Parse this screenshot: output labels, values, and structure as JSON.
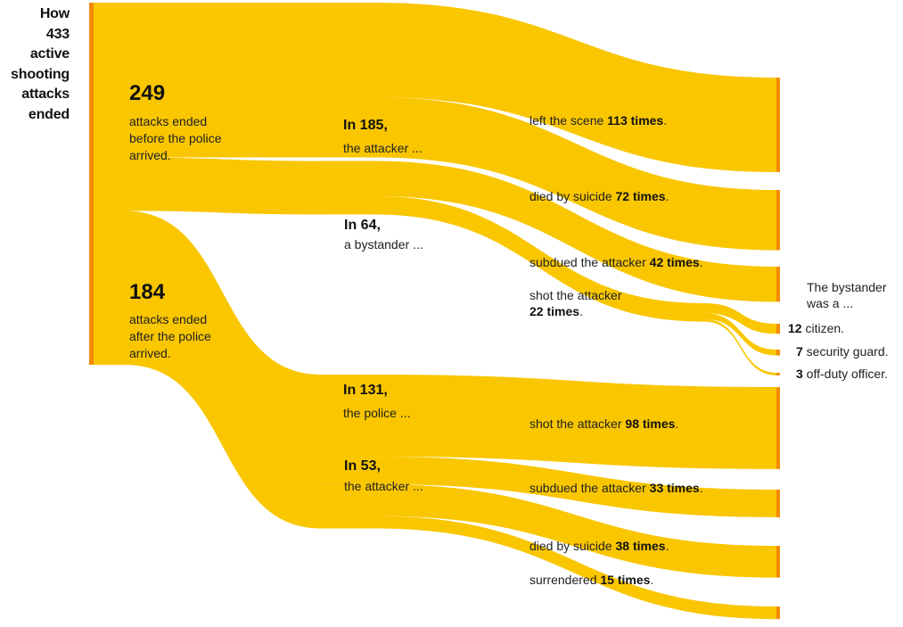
{
  "title": [
    "How",
    "433",
    "active",
    "shooting",
    "attacks",
    "ended"
  ],
  "before": {
    "count": "249",
    "text": [
      "attacks ended",
      "before the police",
      "arrived."
    ]
  },
  "after": {
    "count": "184",
    "text": [
      "attacks ended",
      "after the police",
      "arrived."
    ]
  },
  "mid": {
    "attacker_before": {
      "head": "In 185,",
      "sub": "the attacker ..."
    },
    "bystander": {
      "head": "In 64,",
      "sub": "a bystander ..."
    },
    "police": {
      "head": "In 131,",
      "sub": "the police ..."
    },
    "attacker_after": {
      "head": "In 53,",
      "sub": "the attacker ..."
    }
  },
  "outcomes": {
    "left_scene": {
      "pre": "left the scene ",
      "bold": "113 times",
      "post": "."
    },
    "suicide_before": {
      "pre": "died by suicide ",
      "bold": "72 times",
      "post": "."
    },
    "bystander_subdued": {
      "pre": "subdued the attacker ",
      "bold": "42 times",
      "post": "."
    },
    "bystander_shot_line1": "shot the attacker",
    "bystander_shot": {
      "bold": "22 times",
      "post": "."
    },
    "police_shot": {
      "pre": "shot the attacker ",
      "bold": "98 times",
      "post": "."
    },
    "police_subdued": {
      "pre": "subdued the attacker ",
      "bold": "33 times",
      "post": "."
    },
    "suicide_after": {
      "pre": "died by suicide ",
      "bold": "38 times",
      "post": "."
    },
    "surrendered": {
      "pre": "surrendered ",
      "bold": "15 times",
      "post": "."
    }
  },
  "bystander_type": {
    "header": [
      "The bystander",
      "was a ..."
    ],
    "citizen": {
      "num": "12",
      "label": " citizen."
    },
    "guard": {
      "num": "7",
      "label": " security guard."
    },
    "officer": {
      "num": "3",
      "label": " off-duty officer."
    }
  },
  "flows": {
    "total": 433,
    "before_police": 249,
    "after_police": 184,
    "attacker_before": 185,
    "bystander": 64,
    "police": 131,
    "attacker_after": 53,
    "left_scene": 113,
    "suicide_before": 72,
    "bystander_subdued": 42,
    "bystander_shot": 22,
    "citizen": 12,
    "security_guard": 7,
    "off_duty_officer": 3,
    "police_shot": 98,
    "police_subdued": 33,
    "suicide_after": 38,
    "surrendered": 15
  },
  "colors": {
    "flow": "#f9c600",
    "node_bar": "#f58a00",
    "text": "#111111"
  }
}
